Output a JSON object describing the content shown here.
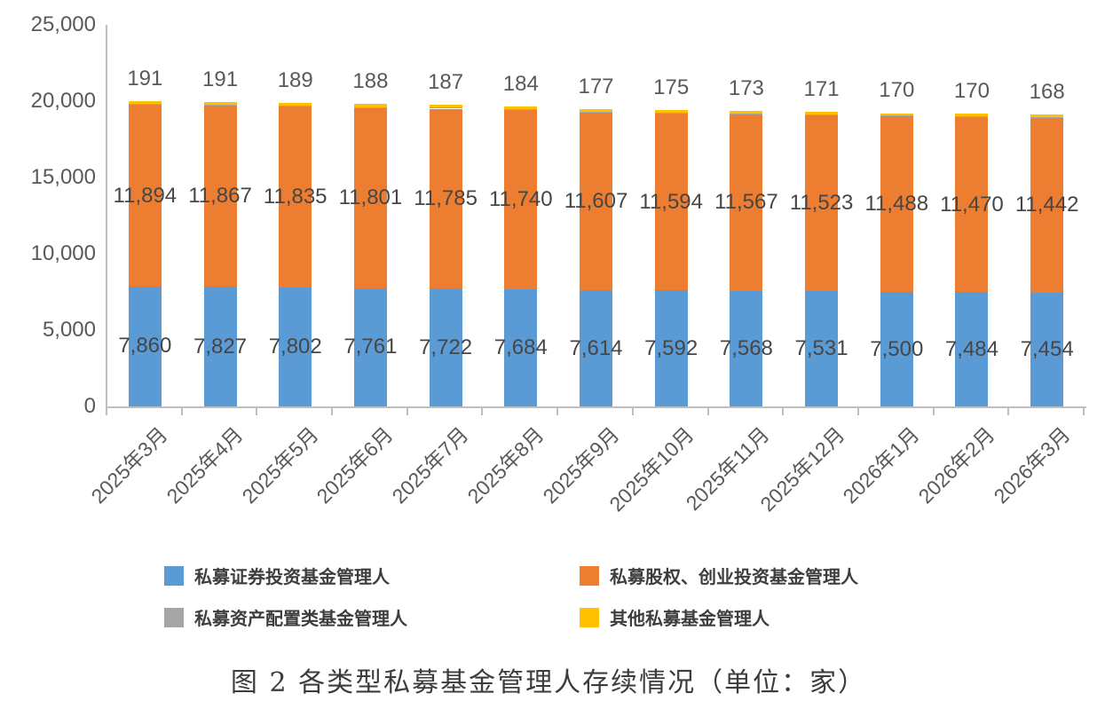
{
  "chart_data": {
    "type": "bar",
    "stacked": true,
    "title": "图 2 各类型私募基金管理人存续情况（单位：家）",
    "unit": "家",
    "grid": false,
    "legend_position": "bottom",
    "categories": [
      "2025年3月",
      "2025年4月",
      "2025年5月",
      "2025年6月",
      "2025年7月",
      "2025年8月",
      "2025年9月",
      "2025年10月",
      "2025年11月",
      "2025年12月",
      "2026年1月",
      "2026年2月",
      "2026年3月"
    ],
    "series": [
      {
        "key": "securities",
        "name": "私募证券投资基金管理人",
        "color": "#5B9BD5",
        "labels": "inside",
        "values": [
          7860,
          7827,
          7802,
          7761,
          7722,
          7684,
          7614,
          7592,
          7568,
          7531,
          7500,
          7484,
          7454
        ]
      },
      {
        "key": "equity-vc",
        "name": "私募股权、创业投资基金管理人",
        "color": "#ED7D31",
        "labels": "inside",
        "values": [
          11894,
          11867,
          11835,
          11801,
          11785,
          11740,
          11607,
          11594,
          11567,
          11523,
          11488,
          11470,
          11442
        ]
      },
      {
        "key": "asset-allocation",
        "name": "私募资产配置类基金管理人",
        "color": "#A5A5A5",
        "labels": "none",
        "values": null
      },
      {
        "key": "other",
        "name": "其他私募基金管理人",
        "color": "#FFC000",
        "labels": "above",
        "values": [
          191,
          191,
          189,
          188,
          187,
          184,
          177,
          175,
          173,
          171,
          170,
          170,
          168
        ]
      }
    ],
    "y_axis": {
      "min": 0,
      "max": 25000,
      "tick_step": 5000,
      "tick_labels": [
        "0",
        "5,000",
        "10,000",
        "15,000",
        "20,000",
        "25,000"
      ]
    }
  }
}
